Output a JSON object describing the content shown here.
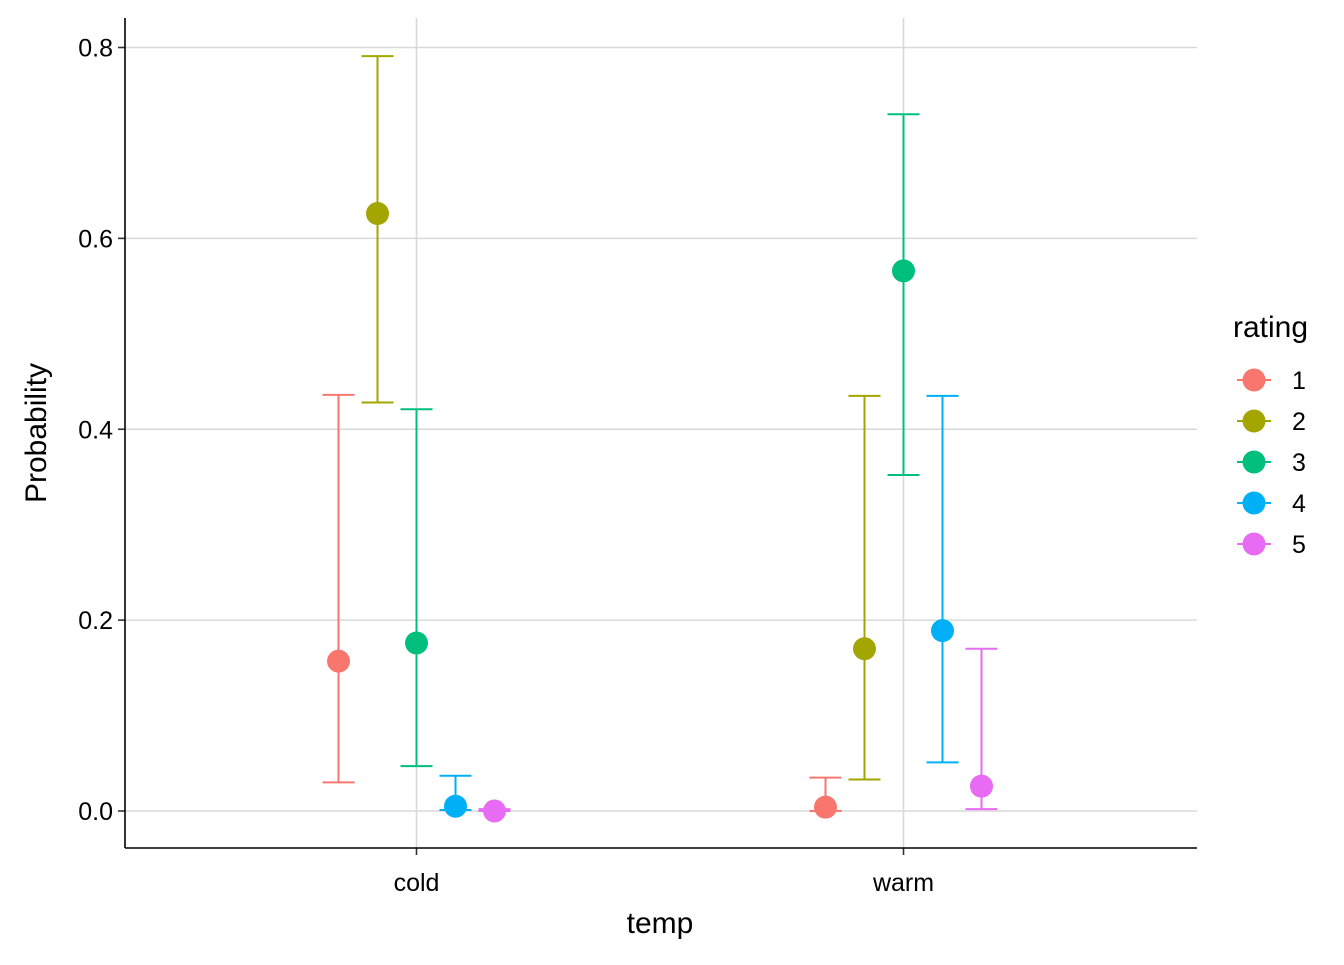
{
  "chart_data": {
    "type": "scatter",
    "title": "",
    "xlabel": "temp",
    "ylabel": "Probability",
    "categories": [
      "cold",
      "warm"
    ],
    "ylim": [
      -0.04,
      0.805
    ],
    "yticks": [
      0.0,
      0.2,
      0.4,
      0.6,
      0.8
    ],
    "ytick_labels": [
      "0.0",
      "0.2",
      "0.4",
      "0.6",
      "0.8"
    ],
    "grid": true,
    "legend": {
      "title": "rating",
      "position": "right"
    },
    "series": [
      {
        "name": "1",
        "color": "#F8766D",
        "values": [
          0.157,
          0.004
        ],
        "lower": [
          0.03,
          0.0
        ],
        "upper": [
          0.436,
          0.035
        ]
      },
      {
        "name": "2",
        "color": "#A3A500",
        "values": [
          0.626,
          0.17
        ],
        "lower": [
          0.428,
          0.033
        ],
        "upper": [
          0.791,
          0.435
        ]
      },
      {
        "name": "3",
        "color": "#00BF7D",
        "values": [
          0.176,
          0.566
        ],
        "lower": [
          0.047,
          0.352
        ],
        "upper": [
          0.421,
          0.73
        ]
      },
      {
        "name": "4",
        "color": "#00B0F6",
        "values": [
          0.005,
          0.189
        ],
        "lower": [
          0.001,
          0.051
        ],
        "upper": [
          0.037,
          0.435
        ]
      },
      {
        "name": "5",
        "color": "#E76BF3",
        "values": [
          0.0,
          0.026
        ],
        "lower": [
          0.0,
          0.002
        ],
        "upper": [
          0.002,
          0.17
        ]
      }
    ]
  }
}
